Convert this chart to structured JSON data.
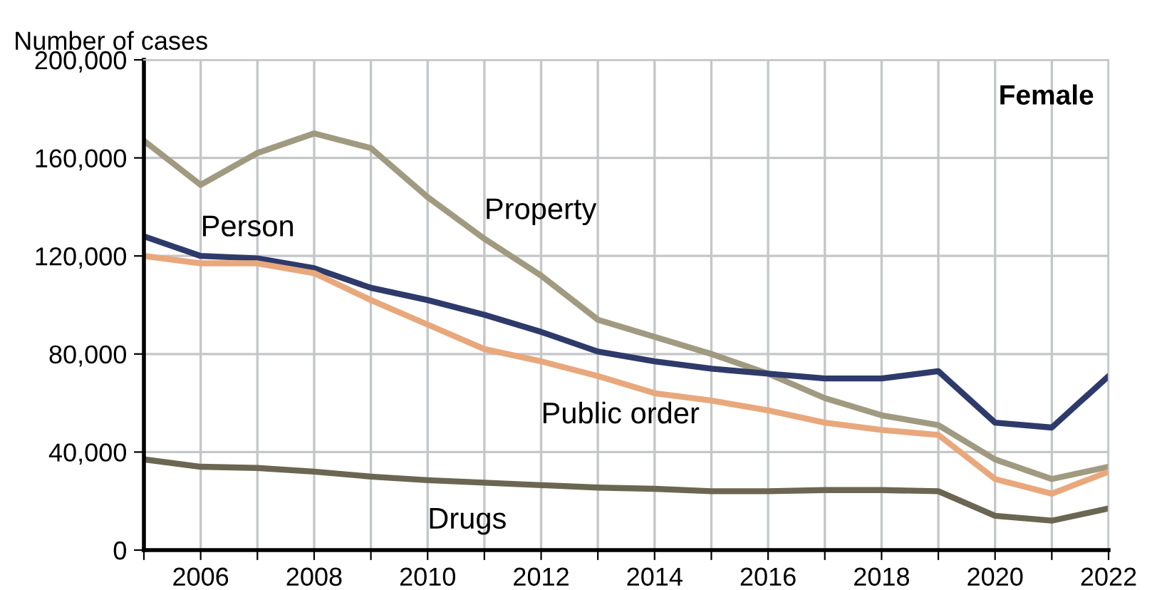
{
  "chart_data": {
    "type": "line",
    "ylabel": "Number of cases",
    "annotations": [
      "Female"
    ],
    "x": [
      2005,
      2006,
      2007,
      2008,
      2009,
      2010,
      2011,
      2012,
      2013,
      2014,
      2015,
      2016,
      2017,
      2018,
      2019,
      2020,
      2021,
      2022
    ],
    "series": [
      {
        "name": "Property",
        "color": "#a09a80",
        "values": [
          167000,
          149000,
          162000,
          170000,
          164000,
          144000,
          127000,
          112000,
          94000,
          87000,
          80000,
          72000,
          62000,
          55000,
          51000,
          37000,
          29000,
          34000
        ]
      },
      {
        "name": "Person",
        "color": "#2e3a6a",
        "values": [
          128000,
          120000,
          119000,
          115000,
          107000,
          102000,
          96000,
          89000,
          81000,
          77000,
          74000,
          72000,
          70000,
          70000,
          73000,
          52000,
          50000,
          71000
        ]
      },
      {
        "name": "Public order",
        "color": "#e8a87c",
        "values": [
          120000,
          117000,
          117000,
          113000,
          102000,
          92000,
          82000,
          77000,
          71000,
          64000,
          61000,
          57000,
          52000,
          49000,
          47000,
          29000,
          23000,
          32000
        ]
      },
      {
        "name": "Drugs",
        "color": "#6b6652",
        "values": [
          37000,
          34000,
          33500,
          32000,
          30000,
          28500,
          27500,
          26500,
          25500,
          25000,
          24000,
          24000,
          24500,
          24500,
          24000,
          14000,
          12000,
          17000
        ]
      }
    ],
    "xlim": [
      2005,
      2022
    ],
    "xticks": [
      {
        "value": 2005,
        "label": null
      },
      2006,
      {
        "value": 2007,
        "label": null
      },
      2008,
      {
        "value": 2009,
        "label": null
      },
      2010,
      {
        "value": 2011,
        "label": null
      },
      2012,
      {
        "value": 2013,
        "label": null
      },
      2014,
      {
        "value": 2015,
        "label": null
      },
      2016,
      {
        "value": 2017,
        "label": null
      },
      2018,
      {
        "value": 2019,
        "label": null
      },
      2020,
      {
        "value": 2021,
        "label": null
      },
      2022
    ],
    "ylim": [
      0,
      200000
    ],
    "yticks": [
      {
        "value": 0,
        "label": "0"
      },
      {
        "value": 40000,
        "label": "40,000"
      },
      {
        "value": 80000,
        "label": "80,000"
      },
      {
        "value": 120000,
        "label": "120,000"
      },
      {
        "value": 160000,
        "label": "160,000"
      },
      {
        "value": 200000,
        "label": "200,000"
      }
    ],
    "grid": true,
    "legend": false,
    "marker": "none",
    "line_style": "solid"
  }
}
